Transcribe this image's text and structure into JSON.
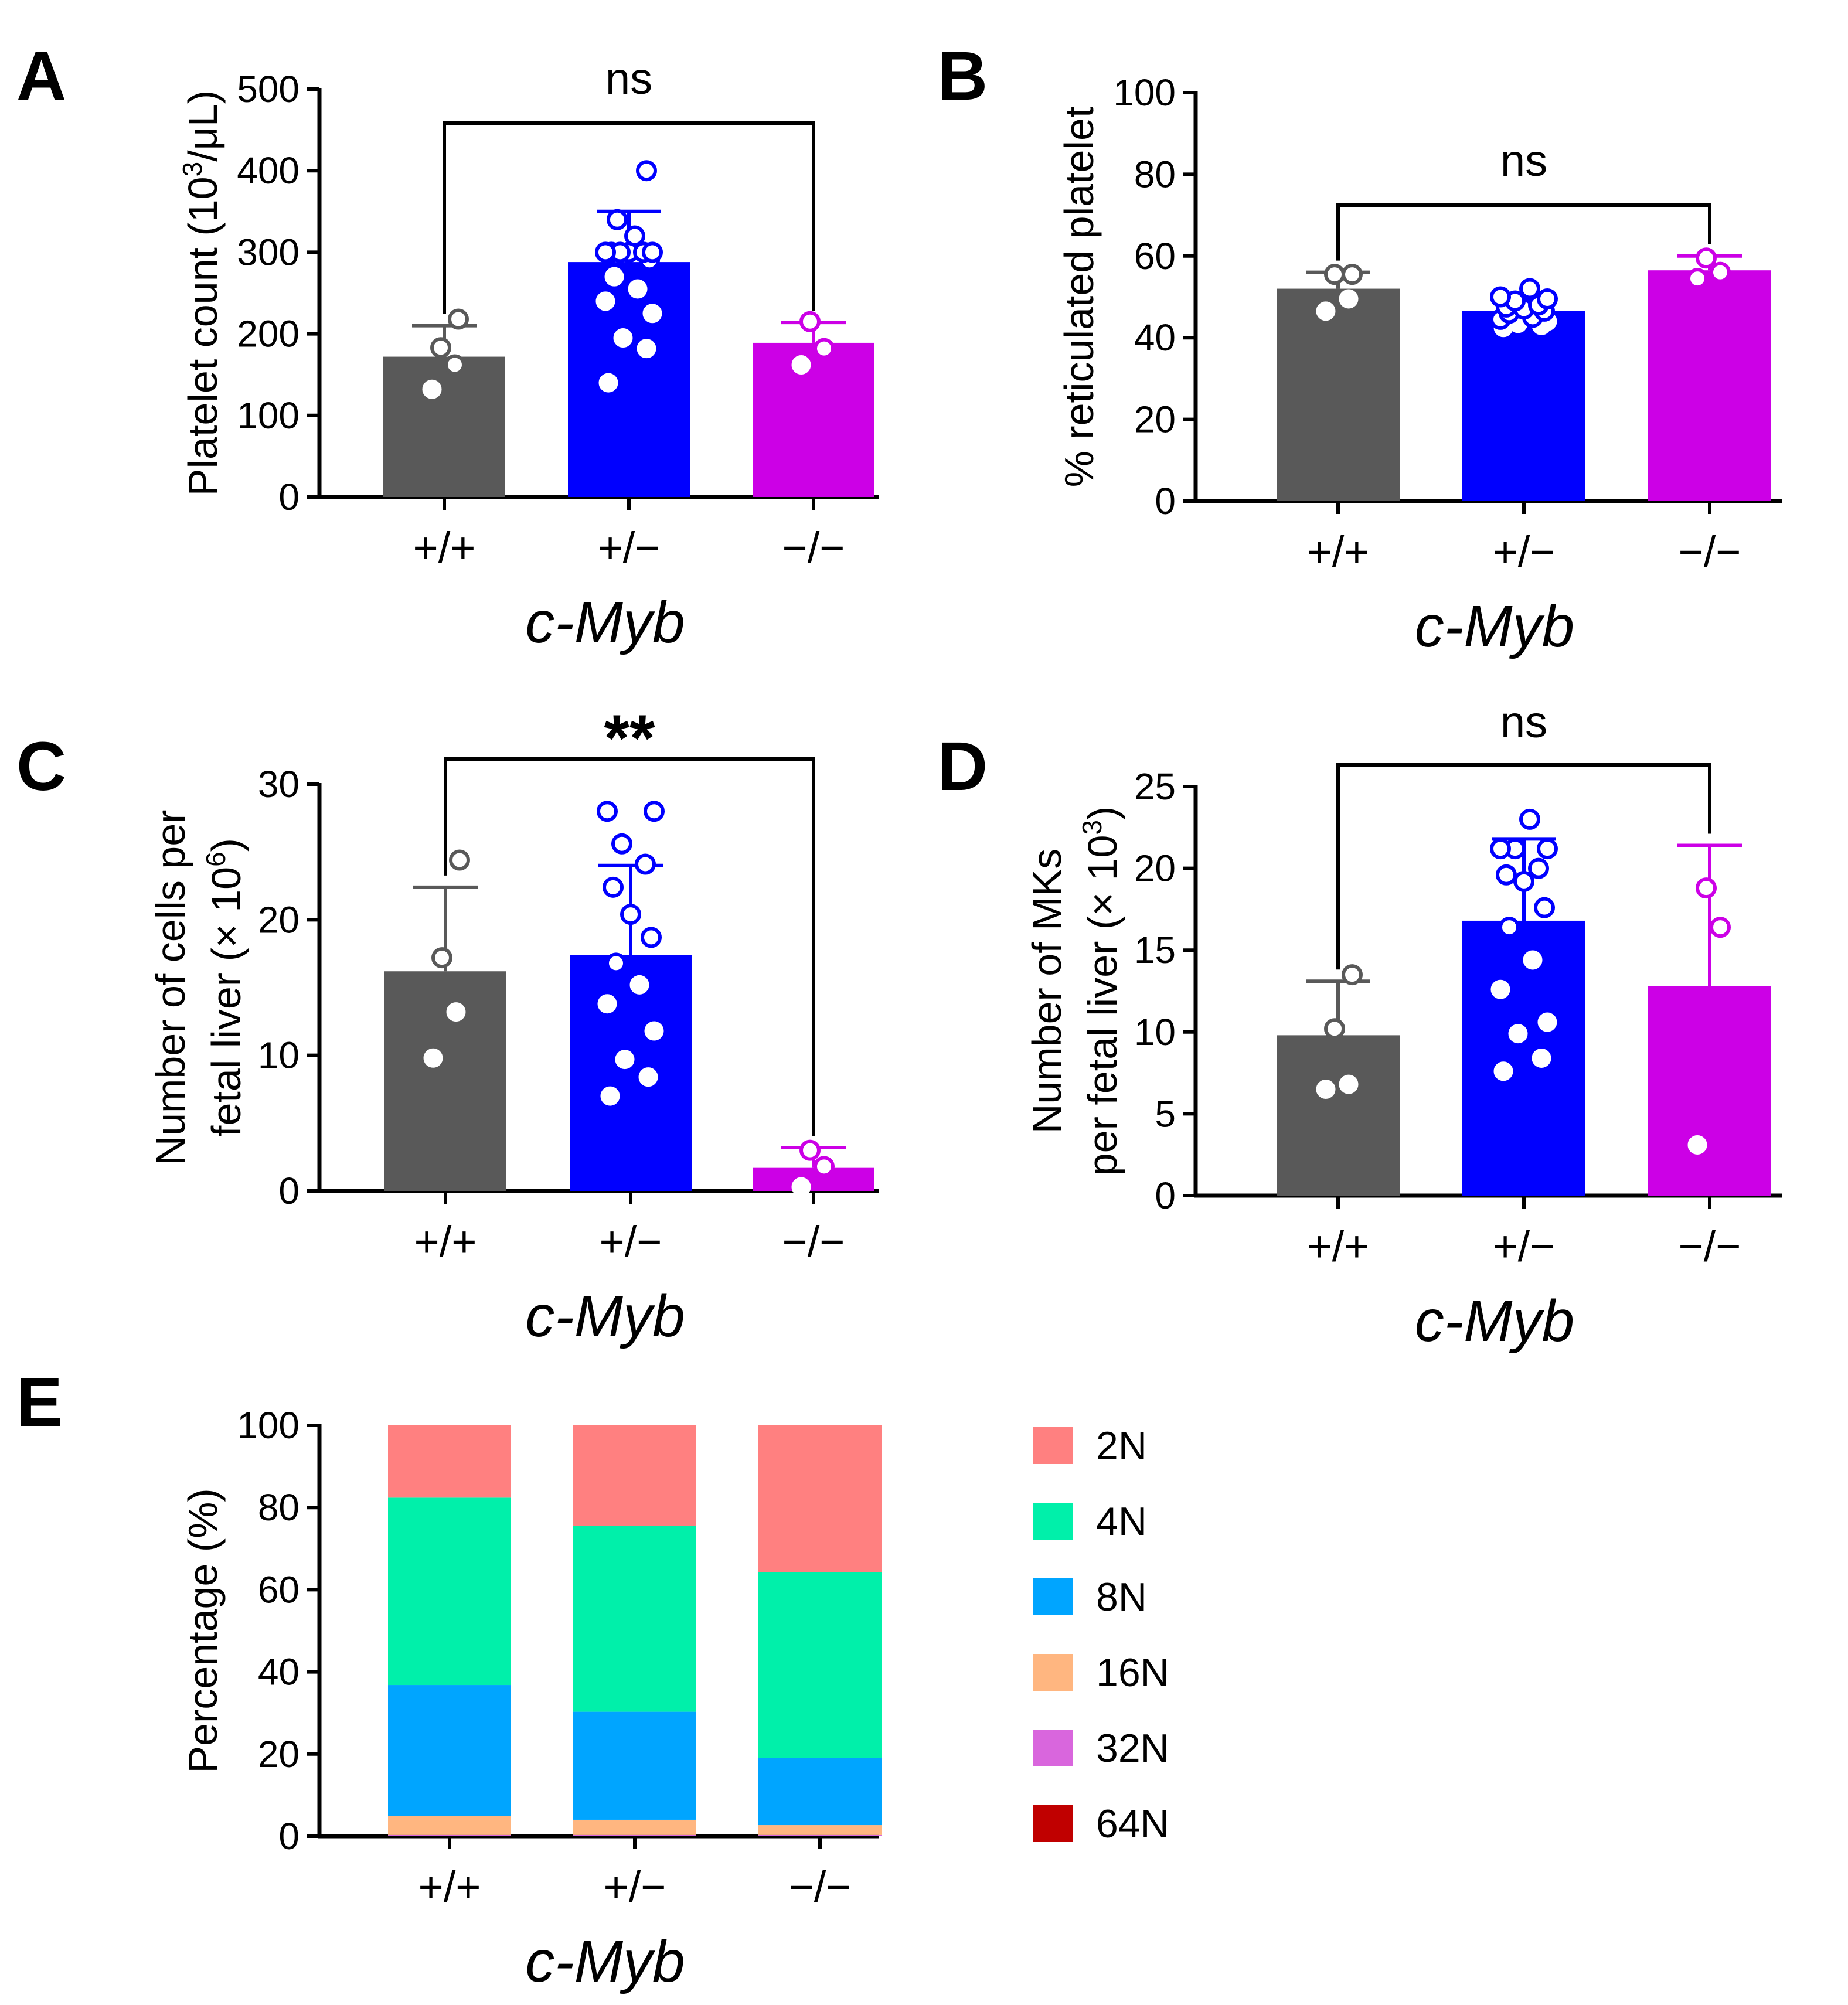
{
  "colors": {
    "wt": "#595959",
    "het": "#0000FF",
    "ko": "#CC00E6",
    "axis": "#000000",
    "ploidy_2N": "#FF8080",
    "ploidy_4N": "#00F0AA",
    "ploidy_8N": "#00A5FF",
    "ploidy_16N": "#FFB680",
    "ploidy_32N": "#D966DD",
    "ploidy_64N": "#C00000"
  },
  "chart_data": [
    {
      "panel": "A",
      "type": "bar",
      "categories": [
        "+/+",
        "+/−",
        "−/−"
      ],
      "xlabel": "c-Myb",
      "ylabel": "Platelet count (10",
      "ylabel_sup": "3",
      "ylabel_suffix": "/μL)",
      "ylim": [
        0,
        500
      ],
      "yticks": [
        "0",
        "100",
        "200",
        "300",
        "400",
        "500"
      ],
      "values": [
        172,
        288,
        189
      ],
      "errors": [
        38,
        62,
        25
      ],
      "points": [
        [
          132,
          162,
          183,
          218
        ],
        [
          140,
          182,
          195,
          225,
          240,
          255,
          270,
          290,
          300,
          300,
          300,
          300,
          300,
          300,
          320,
          340,
          400
        ],
        [
          162,
          182,
          215
        ]
      ],
      "significance": {
        "label": "ns",
        "from": 0,
        "to": 2
      }
    },
    {
      "panel": "B",
      "type": "bar",
      "categories": [
        "+/+",
        "+/−",
        "−/−"
      ],
      "xlabel": "c-Myb",
      "ylabel": "% reticulated platelet",
      "ylim": [
        0,
        100
      ],
      "yticks": [
        "0",
        "20",
        "40",
        "60",
        "80",
        "100"
      ],
      "values": [
        52,
        46.5,
        56.5
      ],
      "errors": [
        4,
        3,
        3.5
      ],
      "points": [
        [
          46.5,
          49.5,
          55.5,
          55.5
        ],
        [
          42.5,
          43,
          43.5,
          44,
          44.5,
          45,
          46,
          46.5,
          47,
          47.5,
          48,
          49,
          49.5,
          50,
          52
        ],
        [
          54.5,
          56,
          59.5
        ]
      ],
      "significance": {
        "label": "ns",
        "from": 0,
        "to": 2
      }
    },
    {
      "panel": "C",
      "type": "bar",
      "categories": [
        "+/+",
        "+/−",
        "−/−"
      ],
      "xlabel": "c-Myb",
      "ylabel_line1": "Number of cells per",
      "ylabel_line2": "fetal liver (× 10",
      "ylabel_sup": "6",
      "ylabel_suffix": ")",
      "ylim": [
        0,
        30
      ],
      "yticks": [
        "0",
        "10",
        "20",
        "30"
      ],
      "values": [
        16.2,
        17.4,
        1.7
      ],
      "errors": [
        6.2,
        6.6,
        1.5
      ],
      "points": [
        [
          9.8,
          13.2,
          17.2,
          24.4
        ],
        [
          7.0,
          8.4,
          9.7,
          11.8,
          13.8,
          15.2,
          16.8,
          18.7,
          20.4,
          22.4,
          24.1,
          25.6,
          28.0,
          28.0
        ],
        [
          0.3,
          1.8,
          3.0
        ]
      ],
      "significance": {
        "label": "**",
        "from": 0,
        "to": 2
      }
    },
    {
      "panel": "D",
      "type": "bar",
      "categories": [
        "+/+",
        "+/−",
        "−/−"
      ],
      "xlabel": "c-Myb",
      "ylabel_line1": "Number of MKs",
      "ylabel_line2": "per fetal liver (× 10",
      "ylabel_sup": "3",
      "ylabel_suffix": ")",
      "ylim": [
        0,
        25
      ],
      "yticks": [
        "0",
        "5",
        "10",
        "15",
        "20",
        "25"
      ],
      "values": [
        9.8,
        16.8,
        12.8
      ],
      "errors": [
        3.3,
        5.0,
        8.6
      ],
      "points": [
        [
          6.5,
          6.8,
          10.2,
          13.5
        ],
        [
          7.6,
          8.4,
          9.9,
          10.6,
          12.6,
          14.4,
          16.4,
          17.6,
          19.2,
          19.6,
          20.0,
          21.2,
          21.2,
          21.2,
          23.0
        ],
        [
          3.1,
          16.4,
          18.8
        ]
      ],
      "significance": {
        "label": "ns",
        "from": 0,
        "to": 2
      }
    },
    {
      "panel": "E",
      "type": "stacked-bar",
      "categories": [
        "+/+",
        "+/−",
        "−/−"
      ],
      "xlabel": "c-Myb",
      "ylabel": "Percentage (%)",
      "ylim": [
        0,
        100
      ],
      "yticks": [
        "0",
        "20",
        "40",
        "60",
        "80",
        "100"
      ],
      "legend_position": "right",
      "series": [
        {
          "name": "64N",
          "key": "ploidy_64N",
          "values": [
            0.1,
            0.1,
            0.1
          ]
        },
        {
          "name": "32N",
          "key": "ploidy_32N",
          "values": [
            0.2,
            0.2,
            0.2
          ]
        },
        {
          "name": "16N",
          "key": "ploidy_16N",
          "values": [
            4.6,
            3.7,
            2.4
          ]
        },
        {
          "name": "8N",
          "key": "ploidy_8N",
          "values": [
            31.9,
            26.3,
            16.3
          ]
        },
        {
          "name": "4N",
          "key": "ploidy_4N",
          "values": [
            45.6,
            45.2,
            45.2
          ]
        },
        {
          "name": "2N",
          "key": "ploidy_2N",
          "values": [
            17.6,
            24.5,
            35.8
          ]
        }
      ],
      "legend_order": [
        "2N",
        "4N",
        "8N",
        "16N",
        "32N",
        "64N"
      ]
    }
  ]
}
